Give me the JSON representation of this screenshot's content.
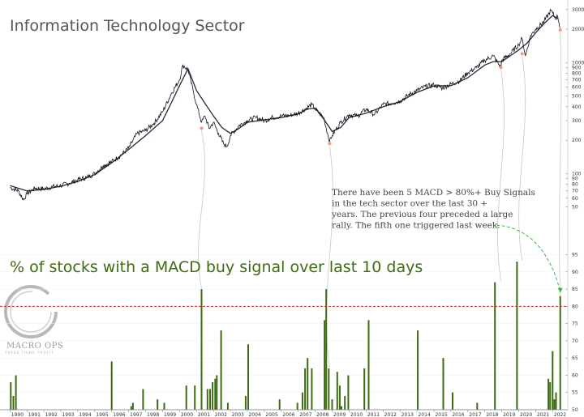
{
  "colors": {
    "price": "#111111",
    "ma": "#1f2a44",
    "bar": "#3d6b14",
    "threshold": "#e02020",
    "connector": "#c8c8c8",
    "marker": "#f29a84",
    "arrow": "#3cb43c"
  },
  "logo": {
    "text": "MACRO OPS",
    "subtext": "TRADE  THINK  PROFIT",
    "icon": "enso-circle-icon"
  },
  "chart_data": [
    {
      "type": "line",
      "title": "Information Technology Sector",
      "scale": "log",
      "ylim": [
        45,
        3200
      ],
      "y_ticks": [
        50,
        60,
        70,
        80,
        90,
        100,
        200,
        300,
        400,
        500,
        600,
        700,
        800,
        900,
        1000,
        2000,
        3000
      ],
      "y_tick_labels": [
        "50",
        "60",
        "70",
        "80",
        "90",
        "100",
        "200",
        "300",
        "400",
        "500",
        "600",
        "700",
        "800",
        "900",
        "1000",
        "2000",
        "3000"
      ],
      "series": [
        {
          "role": "price",
          "x": [
            1990.0,
            1990.5,
            1990.8,
            1991.0,
            1991.5,
            1992.0,
            1992.5,
            1993.0,
            1993.5,
            1994.0,
            1994.5,
            1995.0,
            1995.5,
            1996.0,
            1996.5,
            1997.0,
            1997.5,
            1998.0,
            1998.5,
            1999.0,
            1999.5,
            2000.0,
            2000.2,
            2000.5,
            2000.8,
            2001.0,
            2001.3,
            2001.5,
            2001.75,
            2002.0,
            2002.3,
            2002.6,
            2002.8,
            2003.0,
            2003.5,
            2004.0,
            2004.5,
            2005.0,
            2005.5,
            2006.0,
            2006.5,
            2007.0,
            2007.5,
            2007.8,
            2008.0,
            2008.5,
            2008.85,
            2009.0,
            2009.5,
            2010.0,
            2010.5,
            2011.0,
            2011.5,
            2012.0,
            2012.5,
            2013.0,
            2013.5,
            2014.0,
            2014.5,
            2015.0,
            2015.5,
            2016.0,
            2016.5,
            2017.0,
            2017.5,
            2018.0,
            2018.5,
            2018.95,
            2019.0,
            2019.5,
            2020.0,
            2020.2,
            2020.4,
            2020.7,
            2021.0,
            2021.5,
            2021.9,
            2022.0,
            2022.15,
            2022.3,
            2022.45
          ],
          "y": [
            75,
            70,
            58,
            66,
            74,
            73,
            76,
            78,
            82,
            88,
            92,
            100,
            118,
            128,
            145,
            170,
            230,
            245,
            285,
            360,
            520,
            700,
            950,
            860,
            560,
            420,
            290,
            330,
            255,
            290,
            230,
            185,
            175,
            220,
            270,
            300,
            320,
            300,
            320,
            330,
            335,
            350,
            390,
            420,
            380,
            320,
            195,
            220,
            290,
            340,
            330,
            380,
            340,
            420,
            430,
            450,
            510,
            560,
            610,
            630,
            590,
            640,
            680,
            810,
            900,
            1050,
            1150,
            900,
            1050,
            1200,
            1450,
            1650,
            1150,
            1750,
            2000,
            2350,
            2950,
            2800,
            2500,
            2600,
            2050
          ]
        },
        {
          "role": "moving-average",
          "x": [
            1990.0,
            1991.0,
            1992.0,
            1993.0,
            1994.0,
            1995.0,
            1996.0,
            1997.0,
            1998.0,
            1999.0,
            1999.5,
            2000.0,
            2000.5,
            2001.0,
            2001.5,
            2002.0,
            2002.5,
            2003.0,
            2003.5,
            2004.0,
            2005.0,
            2006.0,
            2007.0,
            2007.5,
            2008.0,
            2008.5,
            2009.0,
            2009.5,
            2010.0,
            2011.0,
            2012.0,
            2013.0,
            2014.0,
            2015.0,
            2016.0,
            2017.0,
            2018.0,
            2018.5,
            2019.0,
            2019.5,
            2020.0,
            2020.5,
            2021.0,
            2021.5,
            2022.0,
            2022.3
          ],
          "y": [
            78,
            70,
            72,
            77,
            85,
            98,
            125,
            165,
            220,
            300,
            430,
            620,
            880,
            560,
            430,
            330,
            260,
            230,
            255,
            290,
            305,
            320,
            345,
            380,
            390,
            310,
            240,
            260,
            320,
            350,
            400,
            445,
            540,
            615,
            620,
            730,
            950,
            1020,
            1020,
            1150,
            1300,
            1500,
            1850,
            2250,
            2650,
            2500
          ]
        }
      ],
      "markers": [
        {
          "x": 2001.3,
          "y": 260
        },
        {
          "x": 2008.85,
          "y": 190
        },
        {
          "x": 2018.95,
          "y": 920
        },
        {
          "x": 2020.2,
          "y": 1220
        },
        {
          "x": 2022.45,
          "y": 2000
        }
      ]
    },
    {
      "type": "bar",
      "title": "% of stocks with a MACD buy signal over last 10 days",
      "ylim": [
        50,
        100
      ],
      "y_ticks": [
        50,
        55,
        60,
        65,
        70,
        75,
        80,
        85,
        90,
        95
      ],
      "y_tick_labels": [
        "50",
        "55",
        "60",
        "65",
        "70",
        "75",
        "80",
        "85",
        "90",
        "95"
      ],
      "threshold": 80,
      "x_ticks": [
        1990,
        1991,
        1992,
        1993,
        1994,
        1995,
        1996,
        1997,
        1998,
        1999,
        2000,
        2001,
        2002,
        2003,
        2004,
        2005,
        2006,
        2007,
        2008,
        2009,
        2010,
        2011,
        2012,
        2013,
        2014,
        2015,
        2016,
        2017,
        2018,
        2019,
        2020,
        2021,
        2022
      ],
      "x_tick_labels": [
        "1990",
        "1991",
        "1992",
        "1993",
        "1994",
        "1995",
        "1996",
        "1997",
        "1998",
        "1999",
        "2000",
        "2001",
        "2002",
        "2003",
        "2004",
        "2005",
        "2006",
        "2007",
        "2008",
        "2009",
        "2010",
        "2011",
        "2012",
        "2013",
        "2014",
        "2015",
        "2016",
        "2017",
        "2018",
        "2019",
        "2020",
        "2021",
        "2022"
      ],
      "xlim": [
        1989.7,
        2022.75
      ],
      "bars": [
        {
          "x": 1990.05,
          "v": 58
        },
        {
          "x": 1990.2,
          "v": 54
        },
        {
          "x": 1990.35,
          "v": 60
        },
        {
          "x": 1996.0,
          "v": 64
        },
        {
          "x": 1997.15,
          "v": 51
        },
        {
          "x": 1997.25,
          "v": 52
        },
        {
          "x": 1997.85,
          "v": 56
        },
        {
          "x": 1998.7,
          "v": 53
        },
        {
          "x": 1999.1,
          "v": 52
        },
        {
          "x": 2000.4,
          "v": 57
        },
        {
          "x": 2000.9,
          "v": 57
        },
        {
          "x": 2001.3,
          "v": 85
        },
        {
          "x": 2001.65,
          "v": 56
        },
        {
          "x": 2001.8,
          "v": 56
        },
        {
          "x": 2001.95,
          "v": 58
        },
        {
          "x": 2002.1,
          "v": 59
        },
        {
          "x": 2002.2,
          "v": 60
        },
        {
          "x": 2002.45,
          "v": 73
        },
        {
          "x": 2002.85,
          "v": 52
        },
        {
          "x": 2003.9,
          "v": 54
        },
        {
          "x": 2004.05,
          "v": 69
        },
        {
          "x": 2005.9,
          "v": 53
        },
        {
          "x": 2006.95,
          "v": 52
        },
        {
          "x": 2007.25,
          "v": 55
        },
        {
          "x": 2007.4,
          "v": 62
        },
        {
          "x": 2007.55,
          "v": 65
        },
        {
          "x": 2007.8,
          "v": 62
        },
        {
          "x": 2008.55,
          "v": 76
        },
        {
          "x": 2008.65,
          "v": 85
        },
        {
          "x": 2008.8,
          "v": 62
        },
        {
          "x": 2009.0,
          "v": 53
        },
        {
          "x": 2009.3,
          "v": 61
        },
        {
          "x": 2009.45,
          "v": 57
        },
        {
          "x": 2009.55,
          "v": 51
        },
        {
          "x": 2009.75,
          "v": 54
        },
        {
          "x": 2009.95,
          "v": 60
        },
        {
          "x": 2010.9,
          "v": 62
        },
        {
          "x": 2011.15,
          "v": 76
        },
        {
          "x": 2014.05,
          "v": 73
        },
        {
          "x": 2015.55,
          "v": 65
        },
        {
          "x": 2016.1,
          "v": 55
        },
        {
          "x": 2017.55,
          "v": 52
        },
        {
          "x": 2018.6,
          "v": 87
        },
        {
          "x": 2019.9,
          "v": 93
        },
        {
          "x": 2021.75,
          "v": 59
        },
        {
          "x": 2021.85,
          "v": 58
        },
        {
          "x": 2022.0,
          "v": 67
        },
        {
          "x": 2022.1,
          "v": 53
        },
        {
          "x": 2022.2,
          "v": 55
        },
        {
          "x": 2022.45,
          "v": 83
        }
      ],
      "annotation": "There have been 5 MACD > 80%+ Buy Signals in the tech sector over the last 30 + years. The previous four preceded a large rally. The fifth one triggered last week."
    }
  ]
}
